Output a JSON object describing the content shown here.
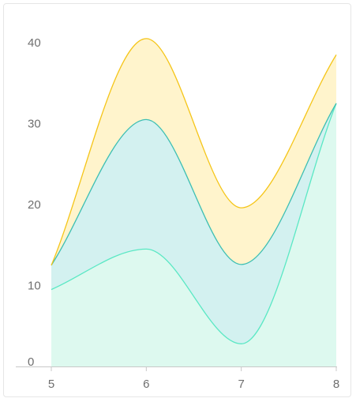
{
  "chart_data": {
    "type": "area",
    "stacked": true,
    "smooth": true,
    "x": [
      5,
      6,
      7,
      8
    ],
    "series": [
      {
        "values": [
          9.5,
          14.5,
          2.8,
          32.5
        ],
        "color": "#5ae8c4",
        "fill": "#ddf9ef"
      },
      {
        "values": [
          3,
          16,
          9.8,
          0
        ],
        "color": "#3dbfb3",
        "fill": "#d3f1f0"
      },
      {
        "values": [
          0,
          10,
          7,
          6
        ],
        "color": "#f5c518",
        "fill": "#fff4cc"
      }
    ],
    "xlim": [
      5,
      8
    ],
    "ylim": [
      0,
      45
    ],
    "xticks": [
      "5",
      "6",
      "7",
      "8"
    ],
    "yticks": [
      "0",
      "10",
      "20",
      "30",
      "40"
    ],
    "grid": false,
    "legend": "none",
    "title": "",
    "xlabel": "",
    "ylabel": ""
  }
}
